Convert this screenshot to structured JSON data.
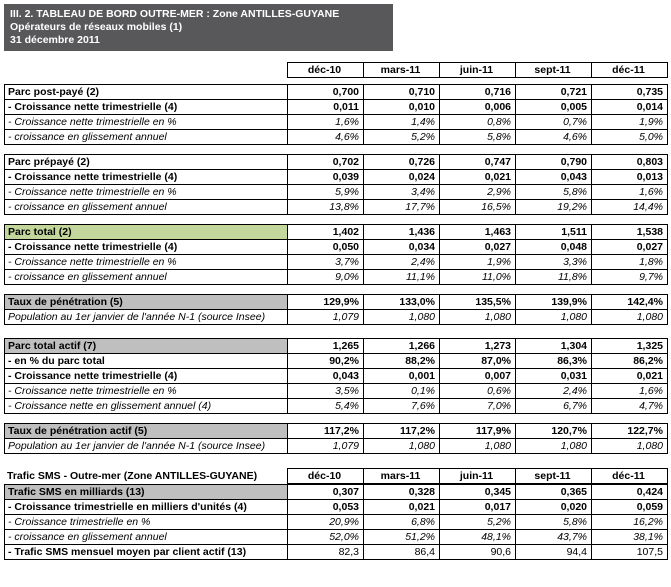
{
  "header": {
    "line1": "III. 2. TABLEAU DE BORD OUTRE-MER : Zone ANTILLES-GUYANE",
    "line2": "Opérateurs de réseaux mobiles (1)",
    "line3": "31 décembre 2011"
  },
  "columns": [
    "déc-10",
    "mars-11",
    "juin-11",
    "sept-11",
    "déc-11"
  ],
  "sms_table_title": "Trafic SMS - Outre-mer (Zone ANTILLES-GUYANE)",
  "colors": {
    "title_bar_bg": "#58585a",
    "green_highlight": "#c3d69b",
    "gray_highlight": "#bfbfbf"
  },
  "sections": [
    {
      "rows": [
        {
          "label": "Parc post-payé (2)",
          "s": "bold",
          "values": [
            "0,700",
            "0,710",
            "0,716",
            "0,721",
            "0,735"
          ]
        },
        {
          "label": "- Croissance nette trimestrielle (4)",
          "s": "bold",
          "values": [
            "0,011",
            "0,010",
            "0,006",
            "0,005",
            "0,014"
          ]
        },
        {
          "label": "- Croissance nette trimestrielle en %",
          "s": "italic",
          "values": [
            "1,6%",
            "1,4%",
            "0,8%",
            "0,7%",
            "1,9%"
          ]
        },
        {
          "label": "- croissance en glissement annuel",
          "s": "italic",
          "values": [
            "4,6%",
            "5,2%",
            "5,8%",
            "4,6%",
            "5,0%"
          ]
        }
      ]
    },
    {
      "rows": [
        {
          "label": "Parc prépayé (2)",
          "s": "bold",
          "values": [
            "0,702",
            "0,726",
            "0,747",
            "0,790",
            "0,803"
          ]
        },
        {
          "label": "- Croissance nette trimestrielle (4)",
          "s": "bold",
          "values": [
            "0,039",
            "0,024",
            "0,021",
            "0,043",
            "0,013"
          ]
        },
        {
          "label": "- Croissance nette trimestrielle en %",
          "s": "italic",
          "values": [
            "5,9%",
            "3,4%",
            "2,9%",
            "5,8%",
            "1,6%"
          ]
        },
        {
          "label": "- croissance en glissement annuel",
          "s": "italic",
          "values": [
            "13,8%",
            "17,7%",
            "16,5%",
            "19,2%",
            "14,4%"
          ]
        }
      ]
    },
    {
      "rows": [
        {
          "label": "Parc total (2)",
          "s": "green",
          "values": [
            "1,402",
            "1,436",
            "1,463",
            "1,511",
            "1,538"
          ]
        },
        {
          "label": "- Croissance nette trimestrielle (4)",
          "s": "bold",
          "values": [
            "0,050",
            "0,034",
            "0,027",
            "0,048",
            "0,027"
          ]
        },
        {
          "label": "- Croissance nette trimestrielle en %",
          "s": "italic",
          "values": [
            "3,7%",
            "2,4%",
            "1,9%",
            "3,3%",
            "1,8%"
          ]
        },
        {
          "label": "- croissance en glissement annuel",
          "s": "italic",
          "values": [
            "9,0%",
            "11,1%",
            "11,0%",
            "11,8%",
            "9,7%"
          ]
        }
      ]
    },
    {
      "rows": [
        {
          "label": "Taux de pénétration (5)",
          "s": "gray",
          "values": [
            "129,9%",
            "133,0%",
            "135,5%",
            "139,9%",
            "142,4%"
          ]
        },
        {
          "label": "Population au 1er janvier de l'année N-1 (source Insee)",
          "s": "italic",
          "values": [
            "1,079",
            "1,080",
            "1,080",
            "1,080",
            "1,080"
          ]
        }
      ]
    },
    {
      "rows": [
        {
          "label": "Parc total actif (7)",
          "s": "gray",
          "values": [
            "1,265",
            "1,266",
            "1,273",
            "1,304",
            "1,325"
          ]
        },
        {
          "label": "- en % du parc total",
          "s": "bold",
          "values": [
            "90,2%",
            "88,2%",
            "87,0%",
            "86,3%",
            "86,2%"
          ]
        },
        {
          "label": "- Croissance nette trimestrielle (4)",
          "s": "bold",
          "values": [
            "0,043",
            "0,001",
            "0,007",
            "0,031",
            "0,021"
          ]
        },
        {
          "label": "- Croissance nette trimestrielle en %",
          "s": "italic",
          "values": [
            "3,5%",
            "0,1%",
            "0,6%",
            "2,4%",
            "1,6%"
          ]
        },
        {
          "label": "- Croissance nette en glissement annuel (4)",
          "s": "italic",
          "values": [
            "5,4%",
            "7,6%",
            "7,0%",
            "6,7%",
            "4,7%"
          ]
        }
      ]
    },
    {
      "rows": [
        {
          "label": "Taux de pénétration actif (5)",
          "s": "gray",
          "values": [
            "117,2%",
            "117,2%",
            "117,9%",
            "120,7%",
            "122,7%"
          ]
        },
        {
          "label": "Population au 1er janvier de l'année N-1 (source Insee)",
          "s": "italic",
          "values": [
            "1,079",
            "1,080",
            "1,080",
            "1,080",
            "1,080"
          ]
        }
      ]
    },
    {
      "repeat_header": true,
      "rows": [
        {
          "label": "Trafic SMS en milliards (13)",
          "s": "gray",
          "values": [
            "0,307",
            "0,328",
            "0,345",
            "0,365",
            "0,424"
          ]
        },
        {
          "label": "- Croissance trimestrielle en milliers d'unités (4)",
          "s": "bold",
          "values": [
            "0,053",
            "0,021",
            "0,017",
            "0,020",
            "0,059"
          ]
        },
        {
          "label": "- Croissance trimestrielle en %",
          "s": "italic",
          "values": [
            "20,9%",
            "6,8%",
            "5,2%",
            "5,8%",
            "16,2%"
          ]
        },
        {
          "label": "- croissance en glissement annuel",
          "s": "italic",
          "values": [
            "52,0%",
            "51,2%",
            "48,1%",
            "43,7%",
            "38,1%"
          ]
        },
        {
          "label": "- Trafic SMS mensuel moyen par client actif (13)",
          "s": "bold-label",
          "values": [
            "82,3",
            "86,4",
            "90,6",
            "94,4",
            "107,5"
          ]
        }
      ]
    }
  ]
}
